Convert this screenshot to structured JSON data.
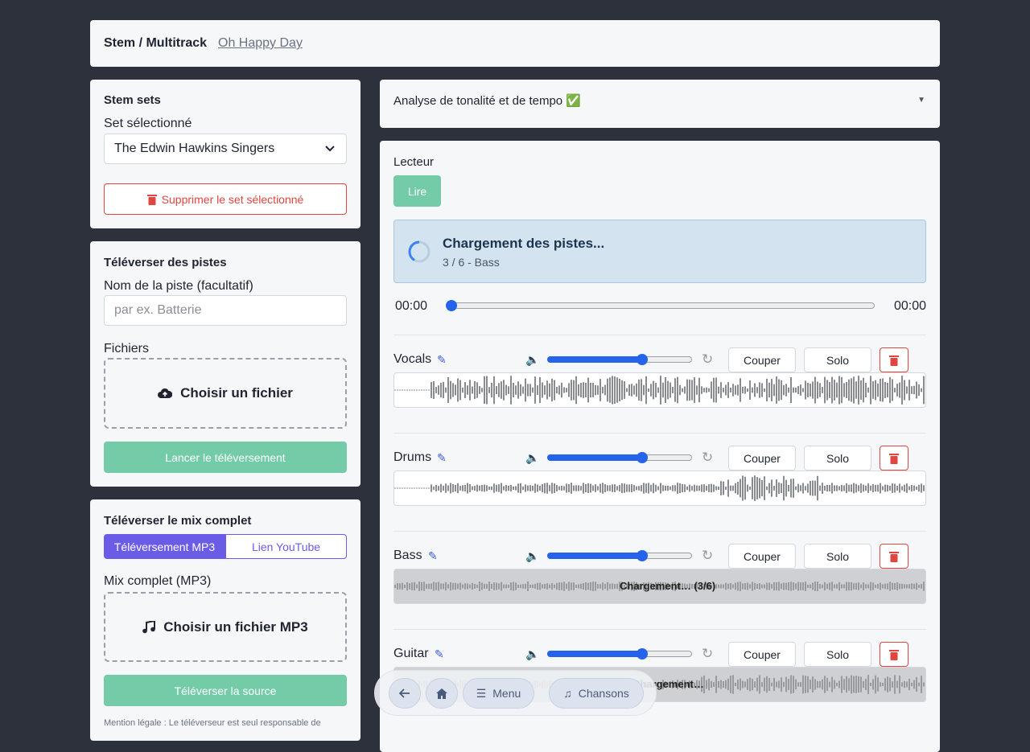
{
  "header": {
    "title": "Stem / Multitrack",
    "song": "Oh Happy Day"
  },
  "stem_sets": {
    "title": "Stem sets",
    "label": "Set sélectionné",
    "selected": "The Edwin Hawkins Singers",
    "delete": "Supprimer le set sélectionné"
  },
  "upload": {
    "title": "Téléverser des pistes",
    "name_label": "Nom de la piste (facultatif)",
    "placeholder": "par ex. Batterie",
    "files_label": "Fichiers",
    "choose": "Choisir un fichier",
    "submit": "Lancer le téléversement"
  },
  "mix": {
    "title": "Téléverser le mix complet",
    "tabs": [
      "Téléversement MP3",
      "Lien YouTube"
    ],
    "label": "Mix complet (MP3)",
    "choose": "Choisir un fichier MP3",
    "submit": "Téléverser la source",
    "legal": "Mention légale : Le téléverseur est seul responsable de"
  },
  "analysis": {
    "title": "Analyse de tonalité et de tempo ✅"
  },
  "player": {
    "title": "Lecteur",
    "play": "Lire",
    "loading_title": "Chargement des pistes...",
    "loading_status": "3 / 6 - Bass",
    "time_start": "00:00",
    "time_end": "00:00"
  },
  "track_buttons": {
    "mute": "Couper",
    "solo": "Solo"
  },
  "tracks": [
    {
      "name": "Vocals"
    },
    {
      "name": "Drums"
    },
    {
      "name": "Bass",
      "overlay": "Chargement… (3/6)"
    },
    {
      "name": "Guitar",
      "overlay": "Chargement…"
    }
  ],
  "nav": {
    "menu": "Menu",
    "songs": "Chansons"
  }
}
